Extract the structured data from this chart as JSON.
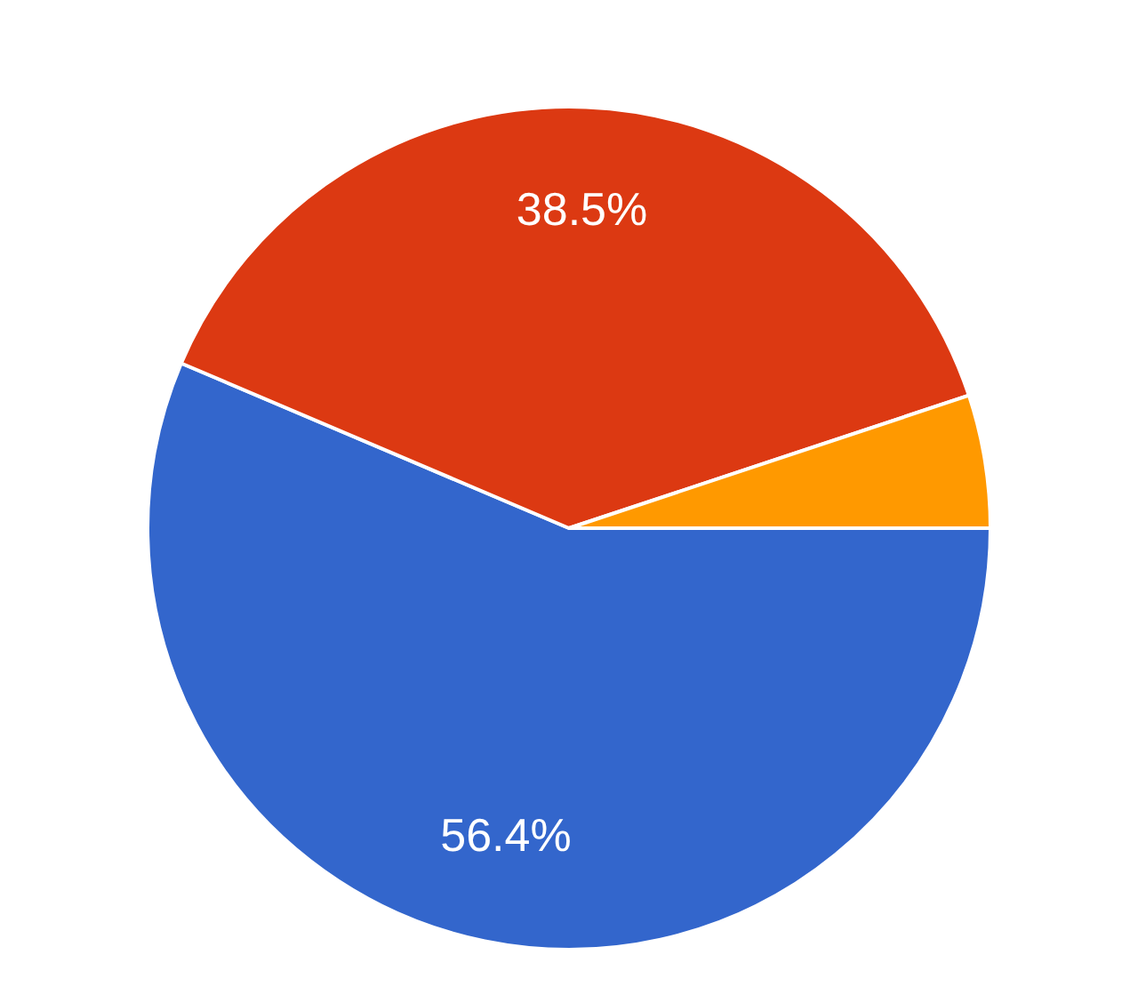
{
  "chart_data": {
    "type": "pie",
    "categories": [
      null,
      null,
      null
    ],
    "values": [
      56.4,
      38.5,
      5.1
    ],
    "colors": [
      "#3366cc",
      "#dc3912",
      "#ff9900"
    ],
    "value_labels": [
      "56.4%",
      "38.5%",
      null
    ],
    "legend": false
  }
}
